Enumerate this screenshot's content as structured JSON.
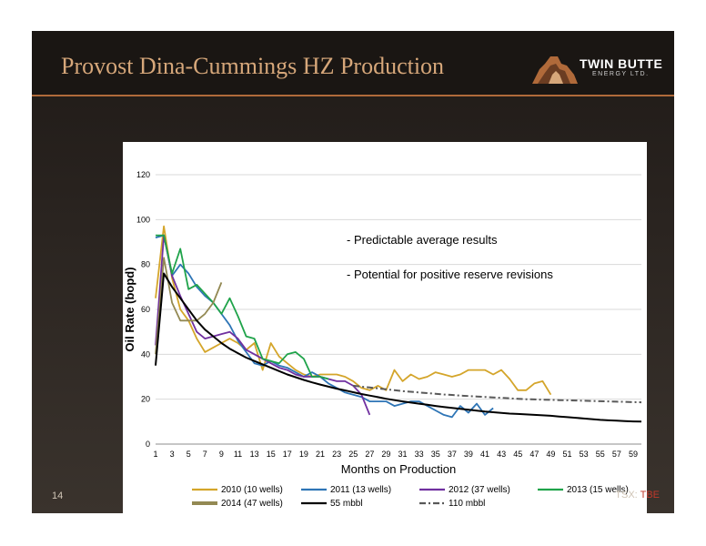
{
  "slide": {
    "title": "Provost Dina-Cummings HZ Production",
    "logo_name": "TWIN BUTTE",
    "logo_sub": "ENERGY LTD.",
    "slide_number": "14",
    "ticker_prefix": "TSX:",
    "ticker_symbol": "TBE"
  },
  "colors": {
    "title": "#d6a77a",
    "rule": "#b06a3a",
    "ticker_accent": "#c0392b"
  },
  "chart_data": {
    "type": "line",
    "title": "",
    "xlabel": "Months on Production",
    "ylabel": "Oil Rate (bopd)",
    "xlim": [
      1,
      60
    ],
    "ylim": [
      0,
      120
    ],
    "y_ticks": [
      0,
      20,
      40,
      60,
      80,
      100,
      120
    ],
    "x_ticks": [
      1,
      3,
      5,
      7,
      9,
      11,
      13,
      15,
      17,
      19,
      21,
      23,
      25,
      27,
      29,
      31,
      33,
      35,
      37,
      39,
      41,
      43,
      45,
      47,
      49,
      51,
      53,
      55,
      57,
      59
    ],
    "grid": true,
    "legend_position": "bottom",
    "annotations": [
      "- Predictable average results",
      "- Potential for positive reserve revisions"
    ],
    "series": [
      {
        "name": "2010 (10 wells)",
        "color": "#d4a52a",
        "style": "solid",
        "values": [
          65,
          97,
          74,
          60,
          55,
          47,
          41,
          43,
          45,
          47,
          45,
          42,
          45,
          33,
          45,
          39,
          36,
          33,
          31,
          30,
          31,
          31,
          31,
          30,
          28,
          25,
          24,
          26,
          24,
          33,
          28,
          31,
          29,
          30,
          32,
          31,
          30,
          31,
          33,
          33,
          33,
          31,
          33,
          29,
          24,
          24,
          27,
          28,
          22
        ]
      },
      {
        "name": "2011 (13 wells)",
        "color": "#2e75b6",
        "style": "solid",
        "values": [
          92,
          93,
          75,
          80,
          76,
          70,
          66,
          63,
          58,
          53,
          46,
          41,
          36,
          35,
          37,
          35,
          34,
          32,
          30,
          32,
          30,
          27,
          25,
          23,
          22,
          21,
          19,
          19,
          19,
          17,
          18,
          19,
          19,
          17,
          15,
          13,
          12,
          17,
          14,
          18,
          13,
          16
        ]
      },
      {
        "name": "2012 (37 wells)",
        "color": "#7030a0",
        "style": "solid",
        "values": [
          44,
          93,
          75,
          66,
          58,
          50,
          47,
          48,
          49,
          50,
          47,
          42,
          40,
          38,
          36,
          34,
          33,
          31,
          30,
          30,
          30,
          29,
          28,
          28,
          26,
          22,
          13
        ]
      },
      {
        "name": "2013 (15 wells)",
        "color": "#1fa34a",
        "style": "solid",
        "values": [
          93,
          93,
          76,
          87,
          69,
          71,
          67,
          63,
          58,
          65,
          57,
          48,
          47,
          38,
          37,
          36,
          40,
          41,
          38,
          30,
          30,
          29
        ]
      },
      {
        "name": "2014 (47 wells)",
        "color": "#938953",
        "style": "solid",
        "values": [
          40,
          83,
          63,
          55,
          55,
          55,
          58,
          63,
          72
        ]
      },
      {
        "name": "55 mbbl",
        "color": "#000000",
        "style": "solid",
        "values": [
          35,
          76,
          70,
          65,
          60,
          55,
          51,
          48,
          45,
          42.5,
          40.5,
          38.5,
          37,
          35.5,
          34,
          32.5,
          31,
          29.8,
          28.6,
          27.5,
          26.5,
          25.6,
          24.7,
          23.9,
          23.1,
          22.3,
          21.6,
          20.9,
          20.2,
          19.6,
          19,
          18.5,
          18,
          17.5,
          17,
          16.5,
          16.1,
          15.7,
          15.3,
          14.9,
          14.5,
          14.2,
          13.9,
          13.6,
          13.4,
          13.2,
          13,
          12.8,
          12.6,
          12.3,
          12,
          11.7,
          11.4,
          11.1,
          10.8,
          10.6,
          10.4,
          10.2,
          10.1,
          10
        ]
      },
      {
        "name": "110 mbbl",
        "color": "#595959",
        "style": "dashdot",
        "values": [
          null,
          null,
          null,
          null,
          null,
          null,
          null,
          null,
          null,
          null,
          null,
          null,
          null,
          null,
          null,
          null,
          null,
          null,
          null,
          null,
          null,
          null,
          null,
          null,
          26,
          25.6,
          25.2,
          24.8,
          24.4,
          24,
          23.6,
          23.3,
          23,
          22.7,
          22.4,
          22.1,
          21.9,
          21.6,
          21.4,
          21.2,
          21,
          20.8,
          20.6,
          20.4,
          20.2,
          20,
          19.9,
          19.8,
          19.7,
          19.6,
          19.5,
          19.4,
          19.3,
          19.2,
          19.1,
          19,
          18.9,
          18.8,
          18.7,
          18.6
        ]
      }
    ]
  }
}
